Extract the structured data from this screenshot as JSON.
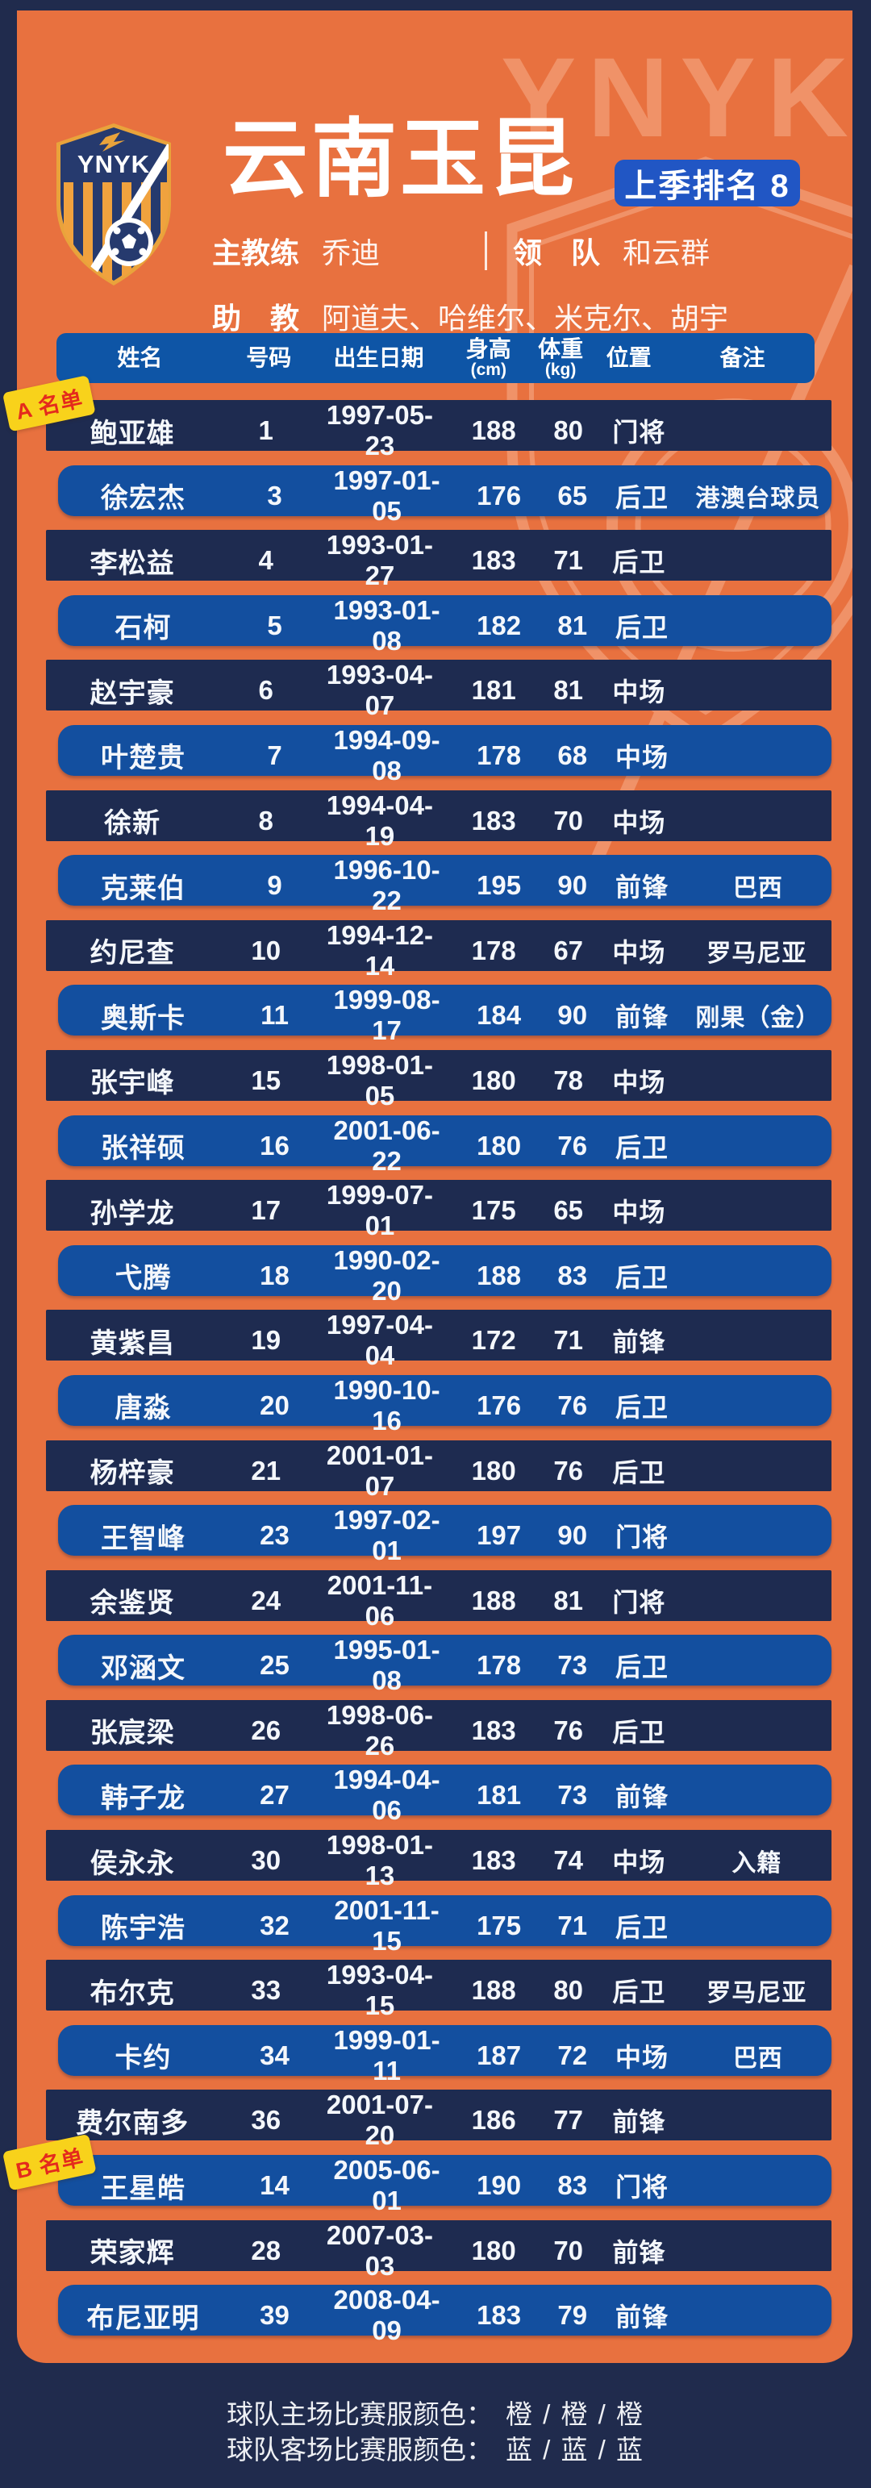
{
  "colors": {
    "page_bg": "#202b4d",
    "panel_orange": "#e8713f",
    "dark_row": "#1e2b50",
    "bright_row": "#134f9f",
    "header_bar": "#0e55a6",
    "badge_blue": "#2156c4",
    "ribbon_yellow": "#f8d21b",
    "ribbon_red": "#e42a1d",
    "watermark_orange": "#f1946b"
  },
  "header": {
    "logo_text": "YNYK",
    "watermark_text": "YNYK",
    "title": "云南玉昆",
    "rank_badge": "上季排名 8",
    "coach_label": "主教练",
    "coach_value": "乔迪",
    "leader_label": "领　队",
    "leader_value": "和云群",
    "assistant_label": "助　教",
    "assistant_value": "阿道夫、哈维尔、米克尔、胡宇"
  },
  "ribbons": {
    "a": "A 名单",
    "b": "B 名单"
  },
  "table": {
    "columns": [
      {
        "label": "姓名",
        "sub": ""
      },
      {
        "label": "号码",
        "sub": ""
      },
      {
        "label": "出生日期",
        "sub": ""
      },
      {
        "label": "身高",
        "sub": "(cm)"
      },
      {
        "label": "体重",
        "sub": "(kg)"
      },
      {
        "label": "位置",
        "sub": ""
      },
      {
        "label": "备注",
        "sub": ""
      }
    ],
    "rows": [
      {
        "name": "鲍亚雄",
        "num": "1",
        "birth": "1997-05-23",
        "h": "188",
        "w": "80",
        "pos": "门将",
        "note": ""
      },
      {
        "name": "徐宏杰",
        "num": "3",
        "birth": "1997-01-05",
        "h": "176",
        "w": "65",
        "pos": "后卫",
        "note": "港澳台球员"
      },
      {
        "name": "李松益",
        "num": "4",
        "birth": "1993-01-27",
        "h": "183",
        "w": "71",
        "pos": "后卫",
        "note": ""
      },
      {
        "name": "石柯",
        "num": "5",
        "birth": "1993-01-08",
        "h": "182",
        "w": "81",
        "pos": "后卫",
        "note": ""
      },
      {
        "name": "赵宇豪",
        "num": "6",
        "birth": "1993-04-07",
        "h": "181",
        "w": "81",
        "pos": "中场",
        "note": ""
      },
      {
        "name": "叶楚贵",
        "num": "7",
        "birth": "1994-09-08",
        "h": "178",
        "w": "68",
        "pos": "中场",
        "note": ""
      },
      {
        "name": "徐新",
        "num": "8",
        "birth": "1994-04-19",
        "h": "183",
        "w": "70",
        "pos": "中场",
        "note": ""
      },
      {
        "name": "克莱伯",
        "num": "9",
        "birth": "1996-10-22",
        "h": "195",
        "w": "90",
        "pos": "前锋",
        "note": "巴西"
      },
      {
        "name": "约尼查",
        "num": "10",
        "birth": "1994-12-14",
        "h": "178",
        "w": "67",
        "pos": "中场",
        "note": "罗马尼亚"
      },
      {
        "name": "奥斯卡",
        "num": "11",
        "birth": "1999-08-17",
        "h": "184",
        "w": "90",
        "pos": "前锋",
        "note": "刚果（金）"
      },
      {
        "name": "张宇峰",
        "num": "15",
        "birth": "1998-01-05",
        "h": "180",
        "w": "78",
        "pos": "中场",
        "note": ""
      },
      {
        "name": "张祥硕",
        "num": "16",
        "birth": "2001-06-22",
        "h": "180",
        "w": "76",
        "pos": "后卫",
        "note": ""
      },
      {
        "name": "孙学龙",
        "num": "17",
        "birth": "1999-07-01",
        "h": "175",
        "w": "65",
        "pos": "中场",
        "note": ""
      },
      {
        "name": "弋腾",
        "num": "18",
        "birth": "1990-02-20",
        "h": "188",
        "w": "83",
        "pos": "后卫",
        "note": ""
      },
      {
        "name": "黄紫昌",
        "num": "19",
        "birth": "1997-04-04",
        "h": "172",
        "w": "71",
        "pos": "前锋",
        "note": ""
      },
      {
        "name": "唐淼",
        "num": "20",
        "birth": "1990-10-16",
        "h": "176",
        "w": "76",
        "pos": "后卫",
        "note": ""
      },
      {
        "name": "杨梓豪",
        "num": "21",
        "birth": "2001-01-07",
        "h": "180",
        "w": "76",
        "pos": "后卫",
        "note": ""
      },
      {
        "name": "王智峰",
        "num": "23",
        "birth": "1997-02-01",
        "h": "197",
        "w": "90",
        "pos": "门将",
        "note": ""
      },
      {
        "name": "余鉴贤",
        "num": "24",
        "birth": "2001-11-06",
        "h": "188",
        "w": "81",
        "pos": "门将",
        "note": ""
      },
      {
        "name": "邓涵文",
        "num": "25",
        "birth": "1995-01-08",
        "h": "178",
        "w": "73",
        "pos": "后卫",
        "note": ""
      },
      {
        "name": "张宸梁",
        "num": "26",
        "birth": "1998-06-26",
        "h": "183",
        "w": "76",
        "pos": "后卫",
        "note": ""
      },
      {
        "name": "韩子龙",
        "num": "27",
        "birth": "1994-04-06",
        "h": "181",
        "w": "73",
        "pos": "前锋",
        "note": ""
      },
      {
        "name": "侯永永",
        "num": "30",
        "birth": "1998-01-13",
        "h": "183",
        "w": "74",
        "pos": "中场",
        "note": "入籍"
      },
      {
        "name": "陈宇浩",
        "num": "32",
        "birth": "2001-11-15",
        "h": "175",
        "w": "71",
        "pos": "后卫",
        "note": ""
      },
      {
        "name": "布尔克",
        "num": "33",
        "birth": "1993-04-15",
        "h": "188",
        "w": "80",
        "pos": "后卫",
        "note": "罗马尼亚"
      },
      {
        "name": "卡约",
        "num": "34",
        "birth": "1999-01-11",
        "h": "187",
        "w": "72",
        "pos": "中场",
        "note": "巴西"
      },
      {
        "name": "费尔南多",
        "num": "36",
        "birth": "2001-07-20",
        "h": "186",
        "w": "77",
        "pos": "前锋",
        "note": ""
      },
      {
        "name": "王星皓",
        "num": "14",
        "birth": "2005-06-01",
        "h": "190",
        "w": "83",
        "pos": "门将",
        "note": ""
      },
      {
        "name": "荣家辉",
        "num": "28",
        "birth": "2007-03-03",
        "h": "180",
        "w": "70",
        "pos": "前锋",
        "note": ""
      },
      {
        "name": "布尼亚明",
        "num": "39",
        "birth": "2008-04-09",
        "h": "183",
        "w": "79",
        "pos": "前锋",
        "note": ""
      }
    ]
  },
  "footer": {
    "home_label": "球队主场比赛服颜色：",
    "home_value": "橙 / 橙 / 橙",
    "away_label": "球队客场比赛服颜色：",
    "away_value": "蓝 / 蓝 / 蓝"
  }
}
